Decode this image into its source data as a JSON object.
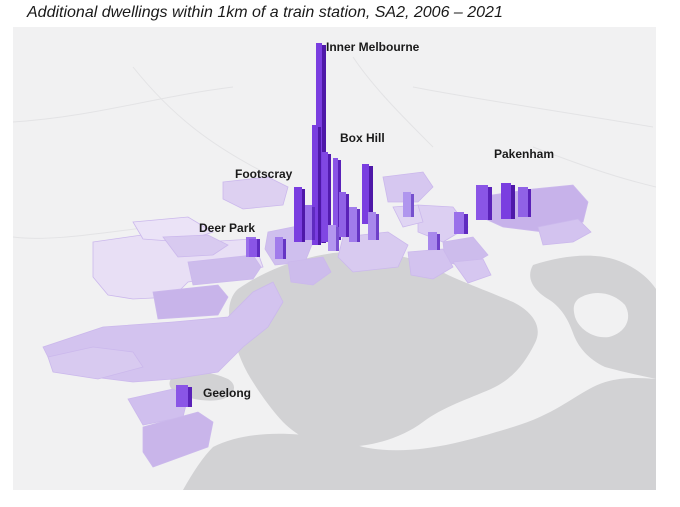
{
  "title": "Additional dwellings within 1km of a train station, SA2, 2006 – 2021",
  "map": {
    "region": "Melbourne and Geelong, Victoria",
    "land_color": "#f1f1f2",
    "water_color": "#d2d2d4",
    "scale_colors": {
      "low": "#e6dcf4",
      "mid": "#b9a0e0",
      "high": "#6a2ad0"
    },
    "labels": [
      {
        "id": "inner-melbourne",
        "text": "Inner Melbourne"
      },
      {
        "id": "box-hill",
        "text": "Box Hill"
      },
      {
        "id": "pakenham",
        "text": "Pakenham"
      },
      {
        "id": "footscray",
        "text": "Footscray"
      },
      {
        "id": "deer-park",
        "text": "Deer Park"
      },
      {
        "id": "geelong",
        "text": "Geelong"
      }
    ]
  }
}
